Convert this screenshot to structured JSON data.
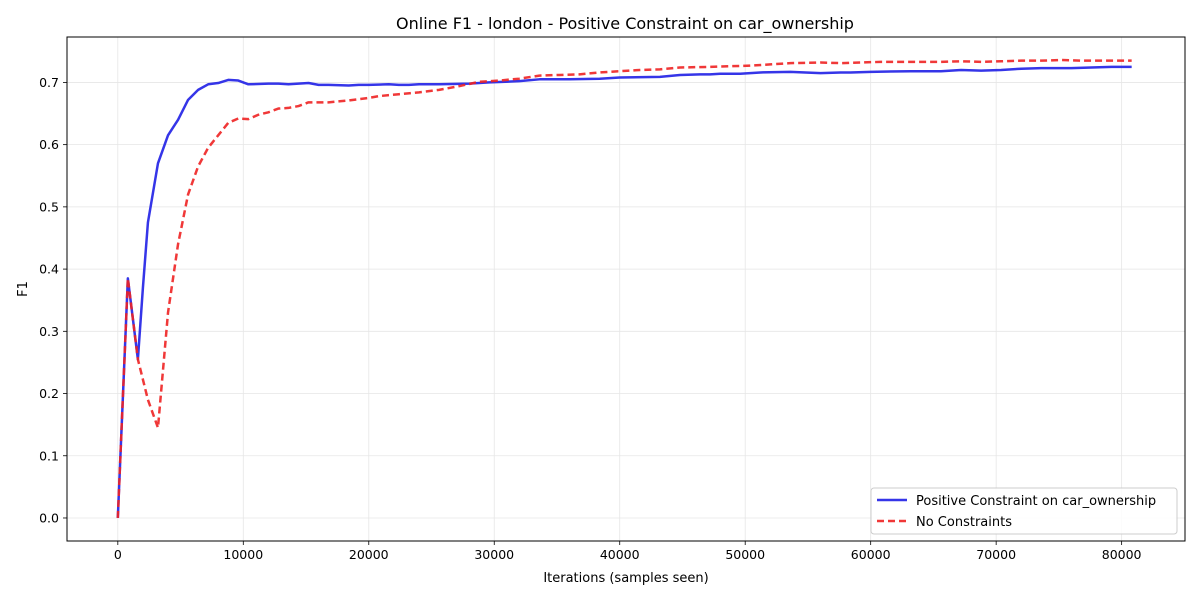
{
  "chart_data": {
    "type": "line",
    "title": "Online F1 - london - Positive Constraint on car_ownership",
    "xlabel": "Iterations (samples seen)",
    "ylabel": "F1",
    "xlim": [
      -4050,
      85050
    ],
    "ylim": [
      -0.037,
      0.773
    ],
    "x_ticks": [
      0,
      10000,
      20000,
      30000,
      40000,
      50000,
      60000,
      70000,
      80000
    ],
    "x_tick_labels": [
      "0",
      "10000",
      "20000",
      "30000",
      "40000",
      "50000",
      "60000",
      "70000",
      "80000"
    ],
    "y_ticks": [
      0.0,
      0.1,
      0.2,
      0.3,
      0.4,
      0.5,
      0.6,
      0.7
    ],
    "y_tick_labels": [
      "0.0",
      "0.1",
      "0.2",
      "0.3",
      "0.4",
      "0.5",
      "0.6",
      "0.7"
    ],
    "grid": true,
    "legend_position": "lower-right",
    "series": [
      {
        "name": "Positive Constraint on car_ownership",
        "color": "#1f1fe6",
        "style": "solid",
        "points": [
          [
            0,
            0.0
          ],
          [
            800,
            0.385
          ],
          [
            1600,
            0.255
          ],
          [
            2000,
            0.37
          ],
          [
            2400,
            0.475
          ],
          [
            3200,
            0.57
          ],
          [
            4000,
            0.615
          ],
          [
            4800,
            0.64
          ],
          [
            5600,
            0.672
          ],
          [
            6400,
            0.688
          ],
          [
            7200,
            0.697
          ],
          [
            8000,
            0.699
          ],
          [
            8800,
            0.704
          ],
          [
            9600,
            0.703
          ],
          [
            10400,
            0.697
          ],
          [
            12000,
            0.698
          ],
          [
            12800,
            0.698
          ],
          [
            13600,
            0.697
          ],
          [
            14400,
            0.698
          ],
          [
            15200,
            0.699
          ],
          [
            16000,
            0.696
          ],
          [
            16800,
            0.696
          ],
          [
            18400,
            0.695
          ],
          [
            19200,
            0.696
          ],
          [
            20000,
            0.696
          ],
          [
            21600,
            0.697
          ],
          [
            22400,
            0.696
          ],
          [
            23200,
            0.696
          ],
          [
            24000,
            0.697
          ],
          [
            25600,
            0.697
          ],
          [
            28000,
            0.698
          ],
          [
            29600,
            0.7
          ],
          [
            32000,
            0.702
          ],
          [
            33600,
            0.705
          ],
          [
            36000,
            0.705
          ],
          [
            38400,
            0.706
          ],
          [
            40000,
            0.708
          ],
          [
            43200,
            0.709
          ],
          [
            44800,
            0.712
          ],
          [
            46400,
            0.713
          ],
          [
            47200,
            0.713
          ],
          [
            48000,
            0.714
          ],
          [
            49600,
            0.714
          ],
          [
            51200,
            0.716
          ],
          [
            53600,
            0.717
          ],
          [
            56000,
            0.715
          ],
          [
            57600,
            0.716
          ],
          [
            58400,
            0.716
          ],
          [
            60000,
            0.717
          ],
          [
            63200,
            0.718
          ],
          [
            65600,
            0.718
          ],
          [
            67200,
            0.72
          ],
          [
            68800,
            0.719
          ],
          [
            70400,
            0.72
          ],
          [
            72000,
            0.722
          ],
          [
            73600,
            0.723
          ],
          [
            75200,
            0.723
          ],
          [
            76000,
            0.723
          ],
          [
            77600,
            0.724
          ],
          [
            79200,
            0.725
          ],
          [
            80800,
            0.725
          ]
        ]
      },
      {
        "name": "No Constraints",
        "color": "#ee2222",
        "style": "dashed",
        "points": [
          [
            0,
            0.0
          ],
          [
            800,
            0.385
          ],
          [
            1600,
            0.255
          ],
          [
            2400,
            0.19
          ],
          [
            3200,
            0.145
          ],
          [
            4000,
            0.33
          ],
          [
            4800,
            0.44
          ],
          [
            5600,
            0.52
          ],
          [
            6400,
            0.565
          ],
          [
            7200,
            0.595
          ],
          [
            8000,
            0.615
          ],
          [
            8800,
            0.635
          ],
          [
            9600,
            0.642
          ],
          [
            10400,
            0.641
          ],
          [
            11200,
            0.648
          ],
          [
            12000,
            0.652
          ],
          [
            12800,
            0.658
          ],
          [
            13600,
            0.659
          ],
          [
            14400,
            0.662
          ],
          [
            15200,
            0.668
          ],
          [
            16800,
            0.668
          ],
          [
            18400,
            0.671
          ],
          [
            20000,
            0.675
          ],
          [
            20800,
            0.678
          ],
          [
            22400,
            0.681
          ],
          [
            24000,
            0.684
          ],
          [
            25600,
            0.688
          ],
          [
            27200,
            0.694
          ],
          [
            28800,
            0.701
          ],
          [
            30400,
            0.703
          ],
          [
            32000,
            0.706
          ],
          [
            33600,
            0.711
          ],
          [
            35200,
            0.712
          ],
          [
            36800,
            0.713
          ],
          [
            38400,
            0.716
          ],
          [
            40000,
            0.718
          ],
          [
            41600,
            0.72
          ],
          [
            43200,
            0.721
          ],
          [
            44800,
            0.724
          ],
          [
            47200,
            0.725
          ],
          [
            48800,
            0.726
          ],
          [
            50400,
            0.727
          ],
          [
            52000,
            0.729
          ],
          [
            53600,
            0.731
          ],
          [
            56000,
            0.732
          ],
          [
            57600,
            0.731
          ],
          [
            59200,
            0.732
          ],
          [
            60800,
            0.733
          ],
          [
            64000,
            0.733
          ],
          [
            65600,
            0.733
          ],
          [
            67200,
            0.734
          ],
          [
            68800,
            0.733
          ],
          [
            70400,
            0.734
          ],
          [
            72000,
            0.735
          ],
          [
            73600,
            0.735
          ],
          [
            75200,
            0.736
          ],
          [
            76800,
            0.735
          ],
          [
            78400,
            0.735
          ],
          [
            80800,
            0.735
          ]
        ]
      }
    ]
  }
}
